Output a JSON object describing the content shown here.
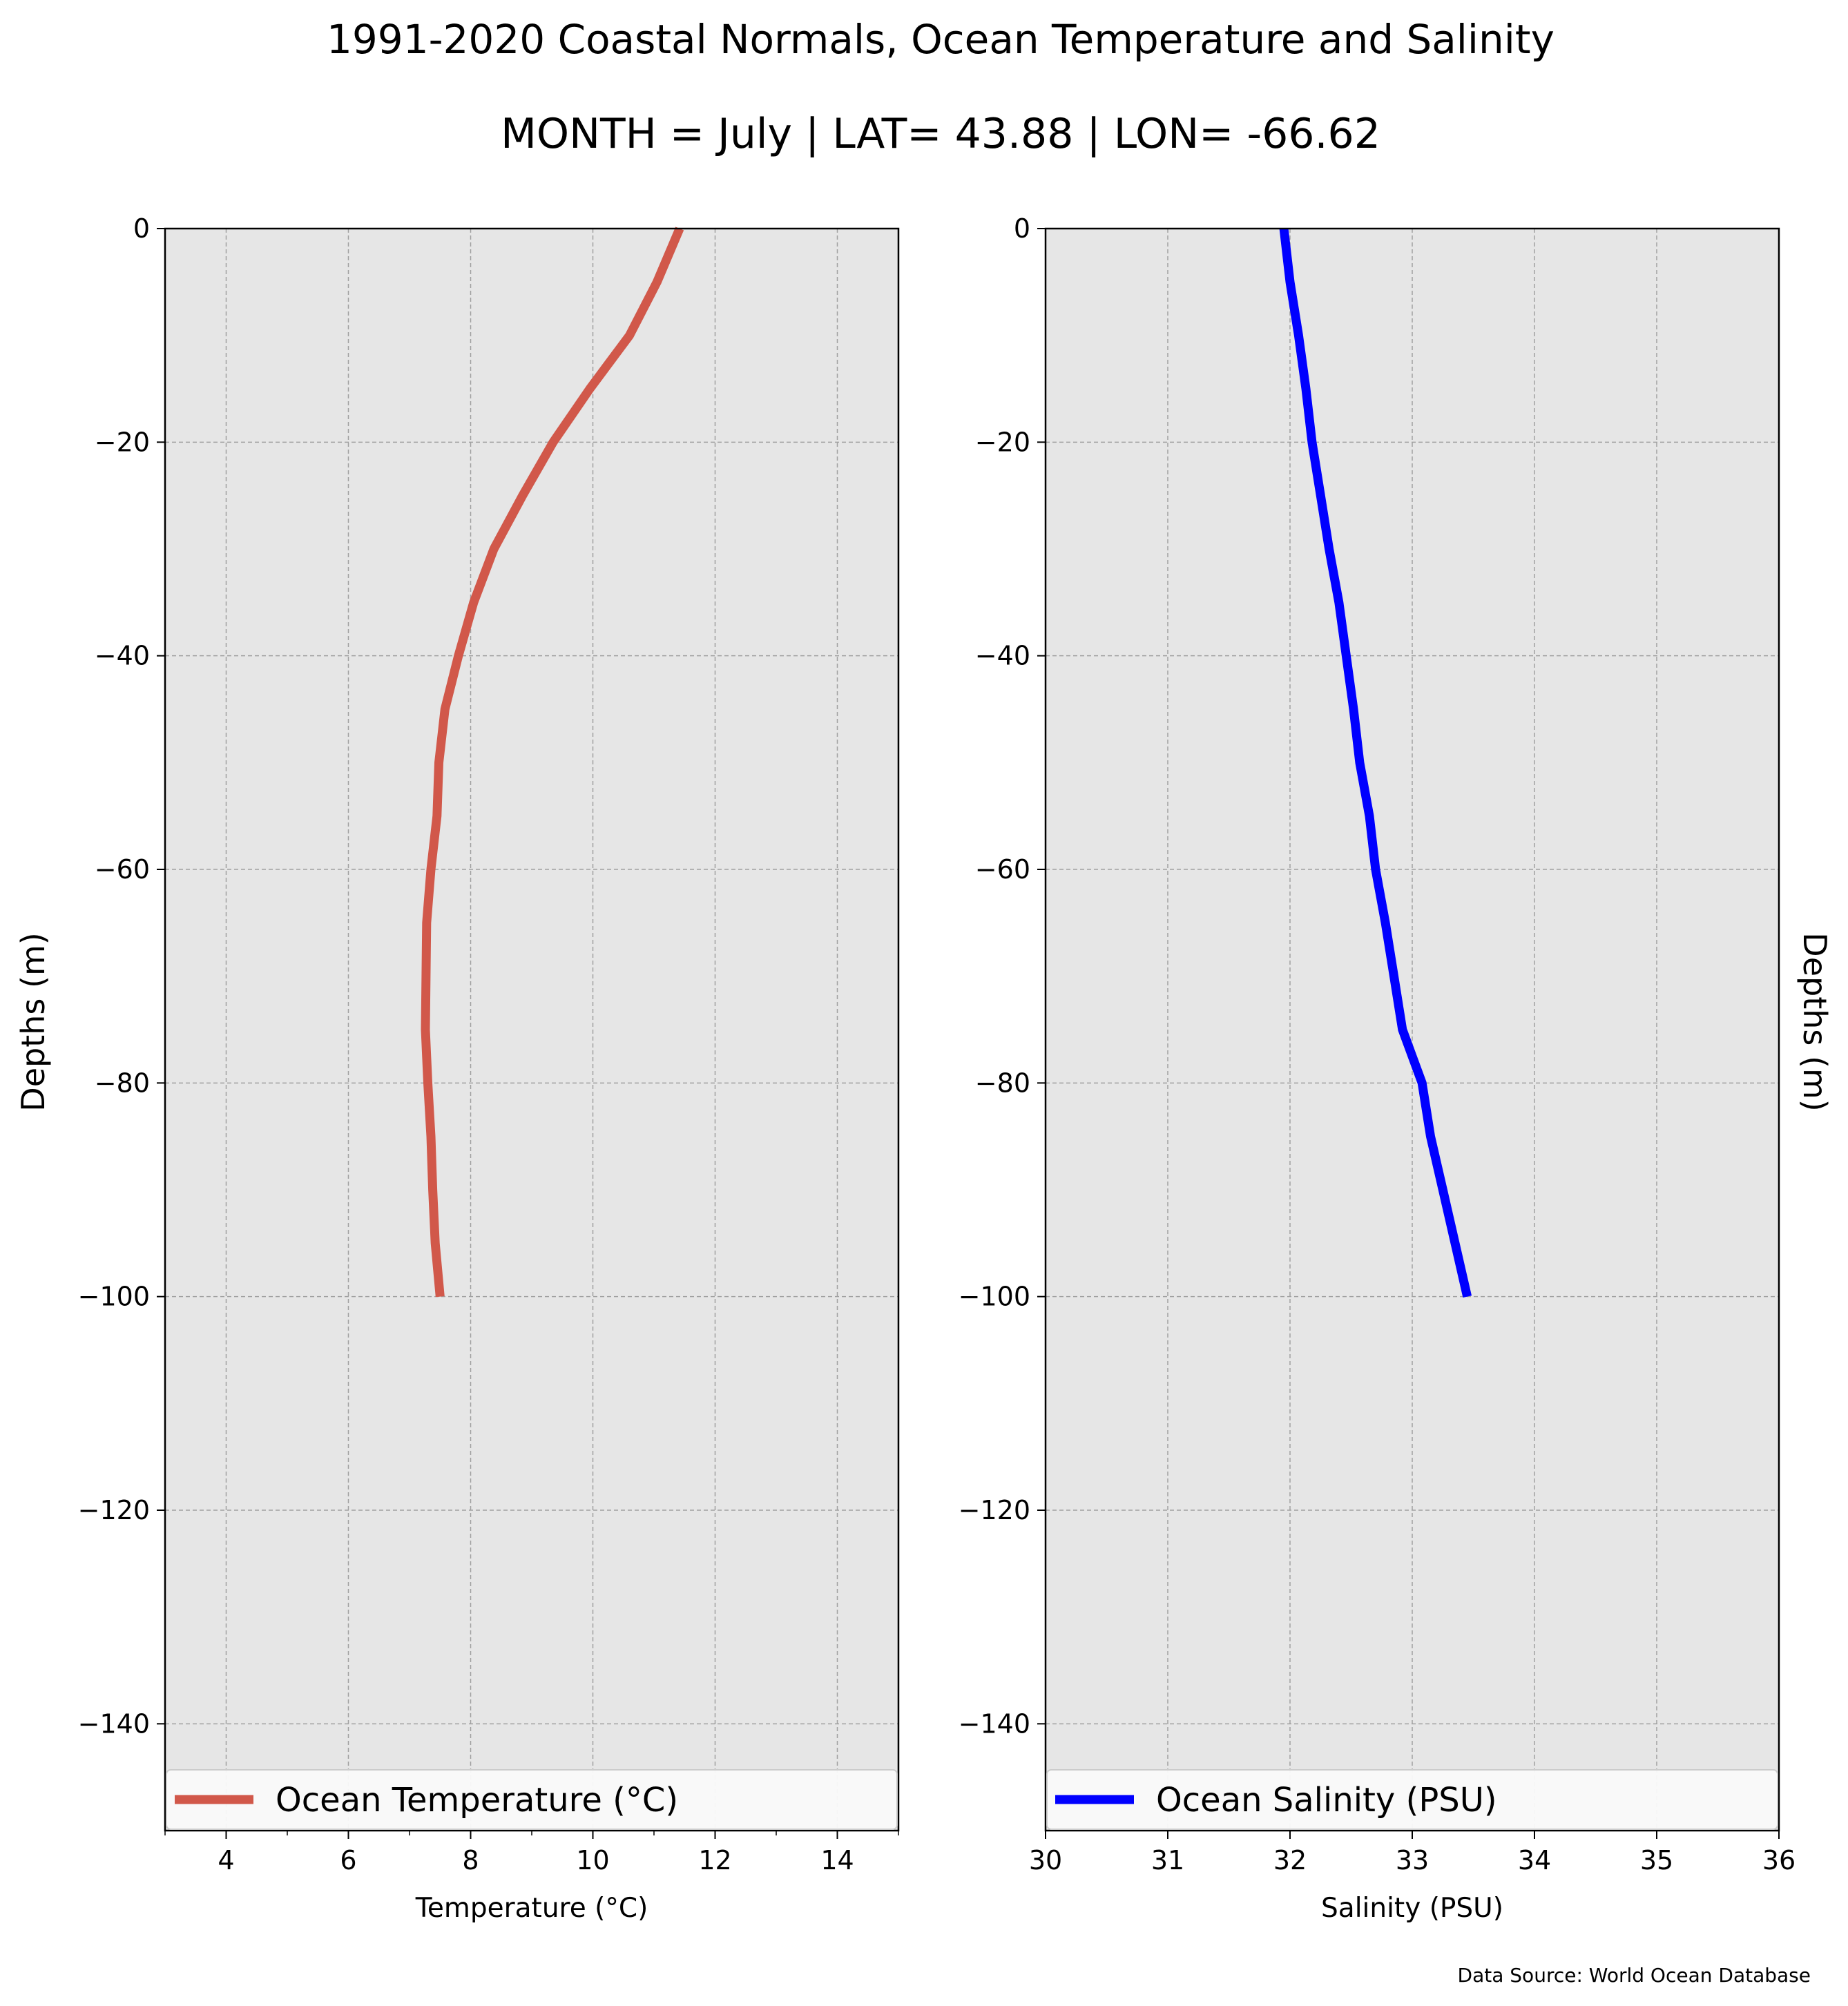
{
  "figure": {
    "title": "1991-2020 Coastal Normals, Ocean Temperature and Salinity",
    "subtitle": "MONTH = July | LAT= 43.88 | LON= -66.62",
    "ylabel_left": "Depths (m)",
    "ylabel_right": "Depths (m)",
    "source": "Data Source: World Ocean Database",
    "background_color": "#e6e6e6",
    "grid_color": "#a0a0a0"
  },
  "chart_data": [
    {
      "type": "line",
      "xlabel": "Temperature (°C)",
      "ylabel": "Depths (m)",
      "xlim": [
        3,
        15
      ],
      "ylim": [
        -150,
        0
      ],
      "xticks": [
        4,
        6,
        8,
        10,
        12,
        14
      ],
      "xtick_labels": [
        "4",
        "6",
        "8",
        "10",
        "12",
        "14"
      ],
      "xticks_minor": [
        3,
        5,
        7,
        9,
        11,
        13,
        15
      ],
      "yticks": [
        0,
        -20,
        -40,
        -60,
        -80,
        -100,
        -120,
        -140
      ],
      "ytick_labels": [
        "0",
        "−20",
        "−40",
        "−60",
        "−80",
        "−100",
        "−120",
        "−140"
      ],
      "grid": true,
      "legend_position": "bottom",
      "series": [
        {
          "name": "Ocean Temperature (°C)",
          "color": "#d1584a",
          "x": [
            11.42,
            11.05,
            10.6,
            9.95,
            9.35,
            8.85,
            8.38,
            8.05,
            7.8,
            7.58,
            7.48,
            7.45,
            7.35,
            7.28,
            7.27,
            7.26,
            7.3,
            7.35,
            7.38,
            7.42,
            7.5
          ],
          "y": [
            0,
            -5,
            -10,
            -15,
            -20,
            -25,
            -30,
            -35,
            -40,
            -45,
            -50,
            -55,
            -60,
            -65,
            -70,
            -75,
            -80,
            -85,
            -90,
            -95,
            -100
          ]
        }
      ]
    },
    {
      "type": "line",
      "xlabel": "Salinity (PSU)",
      "ylabel": "Depths (m)",
      "xlim": [
        30,
        36
      ],
      "ylim": [
        -150,
        0
      ],
      "xticks": [
        30,
        31,
        32,
        33,
        34,
        35,
        36
      ],
      "xtick_labels": [
        "30",
        "31",
        "32",
        "33",
        "34",
        "35",
        "36"
      ],
      "xticks_minor": [],
      "yticks": [
        0,
        -20,
        -40,
        -60,
        -80,
        -100,
        -120,
        -140
      ],
      "ytick_labels": [
        "0",
        "−20",
        "−40",
        "−60",
        "−80",
        "−100",
        "−120",
        "−140"
      ],
      "grid": true,
      "legend_position": "bottom",
      "series": [
        {
          "name": "Ocean Salinity (PSU)",
          "color": "#0000ff",
          "x": [
            31.95,
            32.0,
            32.07,
            32.13,
            32.18,
            32.25,
            32.32,
            32.4,
            32.46,
            32.52,
            32.57,
            32.65,
            32.7,
            32.78,
            32.85,
            32.92,
            33.08,
            33.15,
            33.25,
            33.35,
            33.45
          ],
          "y": [
            0,
            -5,
            -10,
            -15,
            -20,
            -25,
            -30,
            -35,
            -40,
            -45,
            -50,
            -55,
            -60,
            -65,
            -70,
            -75,
            -80,
            -85,
            -90,
            -95,
            -100
          ]
        }
      ]
    }
  ]
}
